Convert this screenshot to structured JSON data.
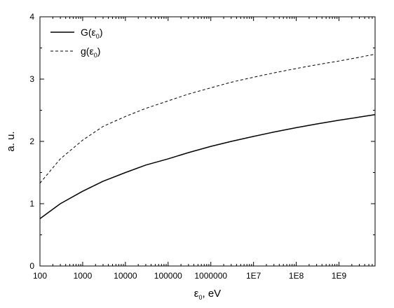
{
  "chart_data": {
    "type": "line",
    "xscale": "log",
    "xlim": [
      100,
      7000000000
    ],
    "ylim": [
      0,
      4
    ],
    "xticks": [
      {
        "value": 100,
        "label": "100"
      },
      {
        "value": 1000,
        "label": "1000"
      },
      {
        "value": 10000,
        "label": "10000"
      },
      {
        "value": 100000,
        "label": "100000"
      },
      {
        "value": 1000000,
        "label": "1000000"
      },
      {
        "value": 10000000,
        "label": "1E7"
      },
      {
        "value": 100000000,
        "label": "1E8"
      },
      {
        "value": 1000000000,
        "label": "1E9"
      }
    ],
    "yticks": [
      {
        "value": 0,
        "label": "0"
      },
      {
        "value": 1,
        "label": "1"
      },
      {
        "value": 2,
        "label": "2"
      },
      {
        "value": 3,
        "label": "3"
      },
      {
        "value": 4,
        "label": "4"
      }
    ],
    "xlabel": {
      "main": "ε",
      "sub": "0",
      "rest": ", eV"
    },
    "ylabel": "a. u.",
    "grid": false,
    "legend_position": "top-left",
    "series": [
      {
        "name": {
          "main": "G(ε",
          "sub": "0",
          "rest": ")"
        },
        "style": "solid",
        "color": "#000000",
        "x": [
          100,
          300,
          1000,
          3000,
          10000,
          30000,
          100000,
          300000,
          1000000,
          3000000,
          10000000,
          30000000,
          100000000,
          300000000,
          1000000000,
          3000000000,
          7000000000
        ],
        "y": [
          0.76,
          1.0,
          1.2,
          1.36,
          1.5,
          1.62,
          1.72,
          1.82,
          1.92,
          2.0,
          2.08,
          2.15,
          2.22,
          2.28,
          2.34,
          2.39,
          2.43
        ]
      },
      {
        "name": {
          "main": "g(ε",
          "sub": "0",
          "rest": ")"
        },
        "style": "dashed",
        "color": "#000000",
        "x": [
          100,
          300,
          1000,
          3000,
          10000,
          30000,
          100000,
          300000,
          1000000,
          3000000,
          10000000,
          30000000,
          100000000,
          300000000,
          1000000000,
          3000000000,
          7000000000
        ],
        "y": [
          1.33,
          1.72,
          2.02,
          2.24,
          2.4,
          2.53,
          2.65,
          2.76,
          2.86,
          2.95,
          3.03,
          3.1,
          3.17,
          3.23,
          3.29,
          3.35,
          3.4
        ]
      }
    ]
  }
}
